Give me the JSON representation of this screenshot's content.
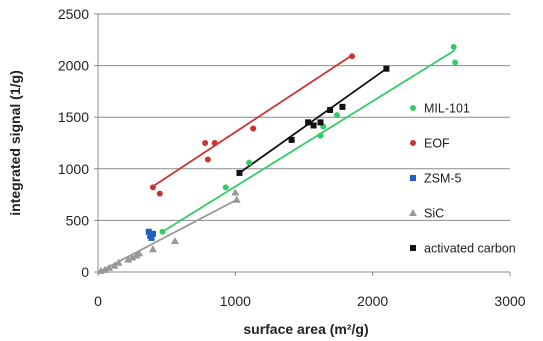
{
  "chart_data": {
    "type": "scatter",
    "xlabel": "surface area (m²/g)",
    "ylabel": "integrated signal (1/g)",
    "xlim": [
      0,
      3000
    ],
    "ylim": [
      0,
      2500
    ],
    "xticks": [
      0,
      1000,
      2000,
      3000
    ],
    "yticks": [
      0,
      500,
      1000,
      1500,
      2000,
      2500
    ],
    "x_tick_labels": [
      "0",
      "1000",
      "2000",
      "3000"
    ],
    "y_tick_labels": [
      "0",
      "500",
      "1000",
      "1500",
      "2000",
      "2500"
    ],
    "grid": "horizontal",
    "legend_position": "right",
    "series": [
      {
        "name": "MIL-101",
        "color": "#33cc66",
        "marker": "circle",
        "points": [
          [
            470,
            390
          ],
          [
            930,
            820
          ],
          [
            1100,
            1060
          ],
          [
            1620,
            1320
          ],
          [
            1640,
            1410
          ],
          [
            1740,
            1520
          ],
          [
            2590,
            2180
          ],
          [
            2600,
            2030
          ]
        ],
        "trendline": [
          [
            470,
            390
          ],
          [
            2600,
            2150
          ]
        ]
      },
      {
        "name": "EOF",
        "color": "#cc3333",
        "marker": "circle",
        "points": [
          [
            400,
            820
          ],
          [
            450,
            760
          ],
          [
            780,
            1250
          ],
          [
            800,
            1090
          ],
          [
            850,
            1250
          ],
          [
            1130,
            1390
          ],
          [
            1850,
            2090
          ]
        ],
        "trendline": [
          [
            400,
            830
          ],
          [
            1850,
            2100
          ]
        ]
      },
      {
        "name": "ZSM-5",
        "color": "#1f5fbf",
        "marker": "square",
        "points": [
          [
            370,
            390
          ],
          [
            390,
            330
          ],
          [
            400,
            370
          ],
          [
            380,
            350
          ]
        ],
        "trendline": []
      },
      {
        "name": "SiC",
        "color": "#999999",
        "marker": "triangle",
        "points": [
          [
            20,
            10
          ],
          [
            50,
            20
          ],
          [
            80,
            40
          ],
          [
            120,
            60
          ],
          [
            150,
            90
          ],
          [
            220,
            120
          ],
          [
            250,
            140
          ],
          [
            280,
            160
          ],
          [
            300,
            180
          ],
          [
            400,
            220
          ],
          [
            560,
            300
          ],
          [
            1000,
            770
          ],
          [
            1010,
            700
          ]
        ],
        "trendline": [
          [
            20,
            10
          ],
          [
            1010,
            700
          ]
        ]
      },
      {
        "name": "activated carbon",
        "color": "#111111",
        "marker": "square",
        "points": [
          [
            1030,
            960
          ],
          [
            1410,
            1280
          ],
          [
            1530,
            1450
          ],
          [
            1570,
            1420
          ],
          [
            1620,
            1450
          ],
          [
            1690,
            1570
          ],
          [
            1780,
            1600
          ],
          [
            2100,
            1970
          ]
        ],
        "trendline": [
          [
            1030,
            960
          ],
          [
            2100,
            1970
          ]
        ]
      }
    ]
  }
}
